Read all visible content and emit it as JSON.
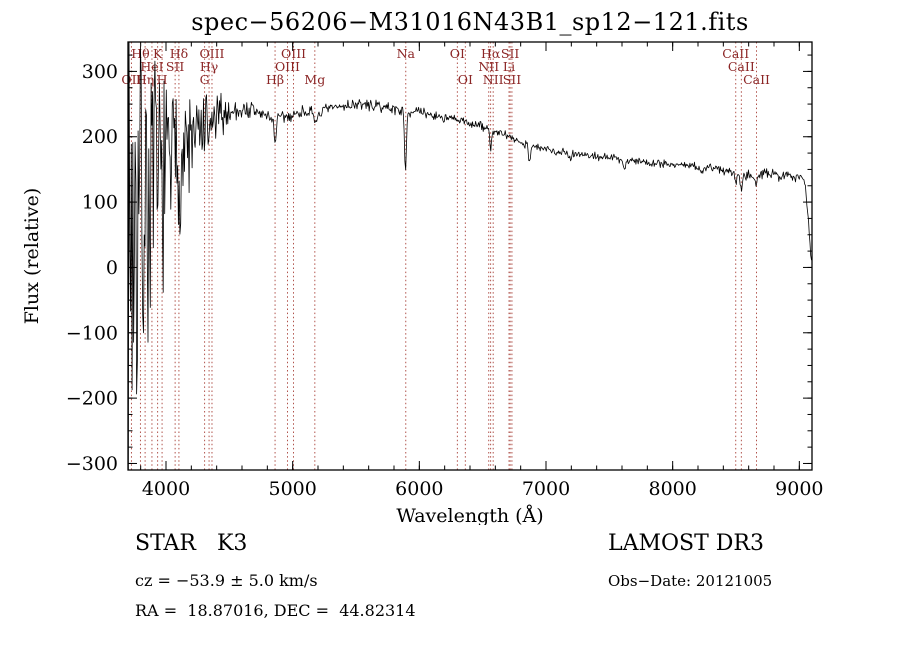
{
  "page": {
    "background": "#ffffff"
  },
  "chart_data": {
    "type": "line",
    "title": "spec−56206−M31016N43B1_sp12−121.fits",
    "xlabel": "Wavelength (Å)",
    "ylabel": "Flux (relative)",
    "xlim": [
      3700,
      9100
    ],
    "ylim": [
      -310,
      345
    ],
    "x_ticks": [
      4000,
      5000,
      6000,
      7000,
      8000,
      9000
    ],
    "y_ticks": [
      -300,
      -200,
      -100,
      0,
      100,
      200,
      300
    ],
    "x_minor_step": 200,
    "y_minor_step": 25,
    "grid": false,
    "line_color": "#000000",
    "axis_color": "#000000",
    "marker_line_color": "#a84038",
    "marker_label_color": "#8b2525",
    "noise_seed": 7,
    "continuum": [
      [
        3700,
        55
      ],
      [
        3780,
        85
      ],
      [
        3860,
        110
      ],
      [
        3940,
        130
      ],
      [
        4020,
        155
      ],
      [
        4100,
        170
      ],
      [
        4200,
        190
      ],
      [
        4300,
        208
      ],
      [
        4400,
        228
      ],
      [
        4500,
        238
      ],
      [
        4600,
        242
      ],
      [
        4700,
        239
      ],
      [
        4800,
        231
      ],
      [
        4900,
        228
      ],
      [
        5000,
        233
      ],
      [
        5100,
        240
      ],
      [
        5200,
        236
      ],
      [
        5300,
        243
      ],
      [
        5400,
        247
      ],
      [
        5500,
        250
      ],
      [
        5600,
        248
      ],
      [
        5700,
        246
      ],
      [
        5800,
        243
      ],
      [
        5900,
        238
      ],
      [
        6000,
        238
      ],
      [
        6100,
        233
      ],
      [
        6250,
        227
      ],
      [
        6400,
        221
      ],
      [
        6550,
        212
      ],
      [
        6700,
        200
      ],
      [
        6850,
        188
      ],
      [
        7000,
        180
      ],
      [
        7200,
        175
      ],
      [
        7400,
        170
      ],
      [
        7600,
        166
      ],
      [
        7800,
        161
      ],
      [
        8000,
        158
      ],
      [
        8200,
        154
      ],
      [
        8400,
        150
      ],
      [
        8480,
        145
      ],
      [
        8550,
        141
      ],
      [
        8700,
        143
      ],
      [
        8850,
        141
      ],
      [
        9000,
        140
      ],
      [
        9045,
        136
      ],
      [
        9070,
        70
      ],
      [
        9100,
        0
      ]
    ],
    "noise_envelope": [
      [
        3700,
        300
      ],
      [
        3760,
        280
      ],
      [
        3820,
        240
      ],
      [
        3880,
        185
      ],
      [
        3940,
        140
      ],
      [
        4000,
        115
      ],
      [
        4060,
        98
      ],
      [
        4120,
        85
      ],
      [
        4200,
        68
      ],
      [
        4300,
        48
      ],
      [
        4400,
        30
      ],
      [
        4500,
        20
      ],
      [
        4600,
        14
      ],
      [
        4800,
        10
      ],
      [
        5000,
        8
      ],
      [
        5500,
        7
      ],
      [
        6000,
        6
      ],
      [
        6500,
        6
      ],
      [
        7000,
        5
      ],
      [
        7500,
        5
      ],
      [
        8000,
        5.5
      ],
      [
        8500,
        6.5
      ],
      [
        9000,
        7
      ]
    ],
    "absorption_features": [
      {
        "wavelength": 4101,
        "depth": 30,
        "sigma": 7
      },
      {
        "wavelength": 4340,
        "depth": 28,
        "sigma": 7
      },
      {
        "wavelength": 4861,
        "depth": 38,
        "sigma": 8
      },
      {
        "wavelength": 5175,
        "depth": 16,
        "sigma": 14
      },
      {
        "wavelength": 5890,
        "depth": 92,
        "sigma": 7
      },
      {
        "wavelength": 6563,
        "depth": 30,
        "sigma": 7
      },
      {
        "wavelength": 6870,
        "depth": 22,
        "sigma": 8
      },
      {
        "wavelength": 7190,
        "depth": 8,
        "sigma": 8
      },
      {
        "wavelength": 7620,
        "depth": 16,
        "sigma": 10
      },
      {
        "wavelength": 8230,
        "depth": 10,
        "sigma": 8
      },
      {
        "wavelength": 8498,
        "depth": 14,
        "sigma": 6
      },
      {
        "wavelength": 8542,
        "depth": 20,
        "sigma": 7
      },
      {
        "wavelength": 8662,
        "depth": 17,
        "sigma": 7
      }
    ],
    "spectral_lines": [
      {
        "wavelength": 3727,
        "label": "OII",
        "row": 3
      },
      {
        "wavelength": 3798,
        "label": "Hθ",
        "row": 1
      },
      {
        "wavelength": 3835,
        "label": "Hη",
        "row": 3
      },
      {
        "wavelength": 3889,
        "label": "HeI",
        "row": 2
      },
      {
        "wavelength": 3934,
        "label": "K",
        "row": 1
      },
      {
        "wavelength": 3969,
        "label": "H",
        "row": 3
      },
      {
        "wavelength": 4072,
        "label": "SII",
        "row": 2
      },
      {
        "wavelength": 4102,
        "label": "Hδ",
        "row": 1
      },
      {
        "wavelength": 4305,
        "label": "G",
        "row": 3
      },
      {
        "wavelength": 4340,
        "label": "Hγ",
        "row": 2
      },
      {
        "wavelength": 4363,
        "label": "OIII",
        "row": 1
      },
      {
        "wavelength": 4861,
        "label": "Hβ",
        "row": 3
      },
      {
        "wavelength": 4959,
        "label": "OIII",
        "row": 2
      },
      {
        "wavelength": 5007,
        "label": "OIII",
        "row": 1
      },
      {
        "wavelength": 5175,
        "label": "Mg",
        "row": 3
      },
      {
        "wavelength": 5893,
        "label": "Na",
        "row": 1
      },
      {
        "wavelength": 6300,
        "label": "OI",
        "row": 1
      },
      {
        "wavelength": 6363,
        "label": "OI",
        "row": 3
      },
      {
        "wavelength": 6548,
        "label": "NII",
        "row": 2
      },
      {
        "wavelength": 6563,
        "label": "Hα",
        "row": 1
      },
      {
        "wavelength": 6583,
        "label": "NII",
        "row": 3
      },
      {
        "wavelength": 6708,
        "label": "Li",
        "row": 2
      },
      {
        "wavelength": 6717,
        "label": "SII",
        "row": 1
      },
      {
        "wavelength": 6731,
        "label": "SII",
        "row": 3
      },
      {
        "wavelength": 8498,
        "label": "CaII",
        "row": 1
      },
      {
        "wavelength": 8542,
        "label": "CaII",
        "row": 2
      },
      {
        "wavelength": 8662,
        "label": "CaII",
        "row": 3
      }
    ]
  },
  "footer": {
    "class_label": "STAR   K3",
    "survey": "LAMOST DR3",
    "cz": "cz = −53.9 ± 5.0 km/s",
    "obs_date": "Obs−Date: 20121005",
    "coords": "RA =  18.87016, DEC =  44.82314"
  }
}
